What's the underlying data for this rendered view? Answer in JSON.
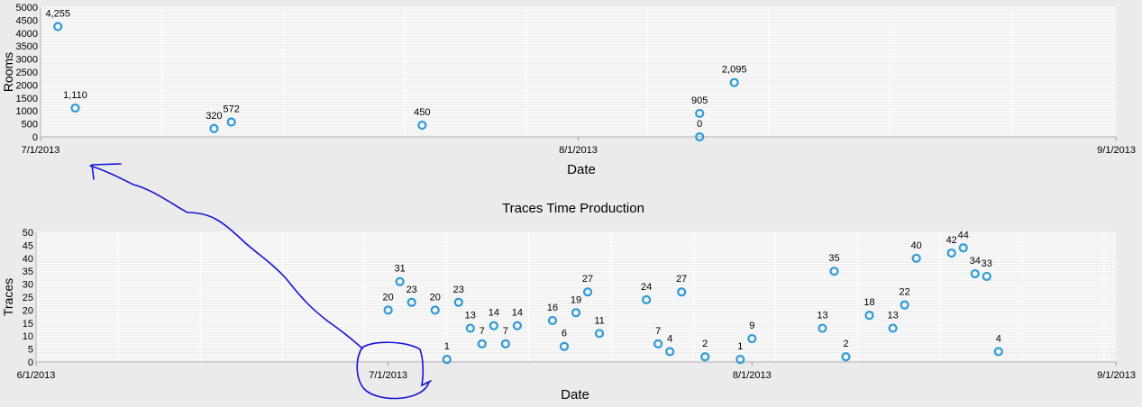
{
  "chart_data": [
    {
      "type": "scatter",
      "title": "",
      "xlabel": "Date",
      "ylabel": "Rooms",
      "xlim": [
        "2013-07-01",
        "2013-09-01"
      ],
      "ylim": [
        0,
        5000
      ],
      "y_ticks": [
        "0",
        "500",
        "1000",
        "1500",
        "2000",
        "2500",
        "3000",
        "3500",
        "4000",
        "4500",
        "5000"
      ],
      "x_ticks": [
        {
          "date": "2013-07-01",
          "label": "7/1/2013"
        },
        {
          "date": "2013-08-01",
          "label": "8/1/2013"
        },
        {
          "date": "2013-09-01",
          "label": "9/1/2013"
        }
      ],
      "grid": true,
      "marker_color": "#2e9bd6",
      "points": [
        {
          "x": "2013-07-02",
          "y": 4255,
          "label": "4,255"
        },
        {
          "x": "2013-07-03",
          "y": 1110,
          "label": "1,110"
        },
        {
          "x": "2013-07-11",
          "y": 320,
          "label": "320"
        },
        {
          "x": "2013-07-12",
          "y": 572,
          "label": "572"
        },
        {
          "x": "2013-07-23",
          "y": 450,
          "label": "450"
        },
        {
          "x": "2013-08-08",
          "y": 905,
          "label": "905"
        },
        {
          "x": "2013-08-08",
          "y": 0,
          "label": "0"
        },
        {
          "x": "2013-08-10",
          "y": 2095,
          "label": "2,095"
        }
      ]
    },
    {
      "type": "scatter",
      "title": "Traces Time Production",
      "xlabel": "Date",
      "ylabel": "Traces",
      "xlim": [
        "2013-06-01",
        "2013-09-01"
      ],
      "ylim": [
        0,
        50
      ],
      "y_ticks": [
        "0",
        "5",
        "10",
        "15",
        "20",
        "25",
        "30",
        "35",
        "40",
        "45",
        "50"
      ],
      "x_ticks": [
        {
          "date": "2013-06-01",
          "label": "6/1/2013"
        },
        {
          "date": "2013-07-01",
          "label": "7/1/2013"
        },
        {
          "date": "2013-08-01",
          "label": "8/1/2013"
        },
        {
          "date": "2013-09-01",
          "label": "9/1/2013"
        }
      ],
      "grid": true,
      "marker_color": "#2e9bd6",
      "points": [
        {
          "x": "2013-07-01",
          "y": 20,
          "label": "20"
        },
        {
          "x": "2013-07-02",
          "y": 31,
          "label": "31"
        },
        {
          "x": "2013-07-03",
          "y": 23,
          "label": "23"
        },
        {
          "x": "2013-07-05",
          "y": 20,
          "label": "20"
        },
        {
          "x": "2013-07-06",
          "y": 1,
          "label": "1"
        },
        {
          "x": "2013-07-07",
          "y": 23,
          "label": "23"
        },
        {
          "x": "2013-07-08",
          "y": 13,
          "label": "13"
        },
        {
          "x": "2013-07-09",
          "y": 7,
          "label": "7"
        },
        {
          "x": "2013-07-10",
          "y": 14,
          "label": "14"
        },
        {
          "x": "2013-07-11",
          "y": 7,
          "label": "7"
        },
        {
          "x": "2013-07-12",
          "y": 14,
          "label": "14"
        },
        {
          "x": "2013-07-15",
          "y": 16,
          "label": "16"
        },
        {
          "x": "2013-07-16",
          "y": 6,
          "label": "6"
        },
        {
          "x": "2013-07-17",
          "y": 19,
          "label": "19"
        },
        {
          "x": "2013-07-18",
          "y": 27,
          "label": "27"
        },
        {
          "x": "2013-07-19",
          "y": 11,
          "label": "11"
        },
        {
          "x": "2013-07-23",
          "y": 24,
          "label": "24"
        },
        {
          "x": "2013-07-24",
          "y": 7,
          "label": "7"
        },
        {
          "x": "2013-07-25",
          "y": 4,
          "label": "4"
        },
        {
          "x": "2013-07-26",
          "y": 27,
          "label": "27"
        },
        {
          "x": "2013-07-28",
          "y": 2,
          "label": "2"
        },
        {
          "x": "2013-07-31",
          "y": 1,
          "label": "1"
        },
        {
          "x": "2013-08-01",
          "y": 9,
          "label": "9"
        },
        {
          "x": "2013-08-07",
          "y": 13,
          "label": "13"
        },
        {
          "x": "2013-08-08",
          "y": 35,
          "label": "35"
        },
        {
          "x": "2013-08-09",
          "y": 2,
          "label": "2"
        },
        {
          "x": "2013-08-11",
          "y": 18,
          "label": "18"
        },
        {
          "x": "2013-08-13",
          "y": 13,
          "label": "13"
        },
        {
          "x": "2013-08-14",
          "y": 22,
          "label": "22"
        },
        {
          "x": "2013-08-15",
          "y": 40,
          "label": "40"
        },
        {
          "x": "2013-08-18",
          "y": 42,
          "label": "42"
        },
        {
          "x": "2013-08-19",
          "y": 44,
          "label": "44"
        },
        {
          "x": "2013-08-20",
          "y": 34,
          "label": "34"
        },
        {
          "x": "2013-08-21",
          "y": 33,
          "label": "33"
        },
        {
          "x": "2013-08-22",
          "y": 4,
          "label": "4"
        }
      ]
    }
  ],
  "annotation": {
    "color": "#1414d6"
  }
}
